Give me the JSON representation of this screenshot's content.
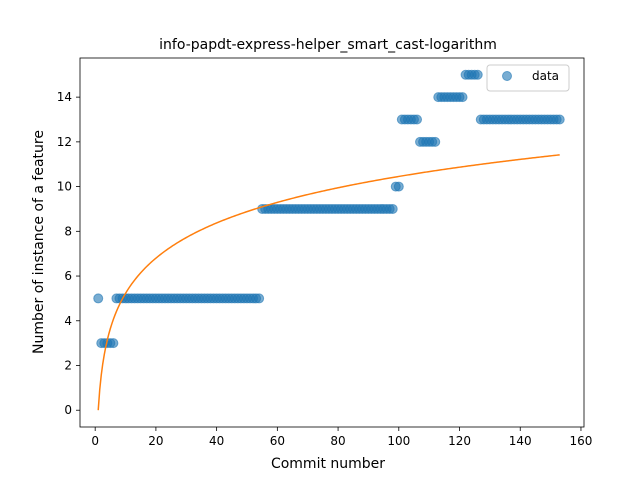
{
  "chart_data": {
    "type": "scatter",
    "title": "info-papdt-express-helper_smart_cast-logarithm",
    "xlabel": "Commit number",
    "ylabel": "Number of instance of a feature",
    "xlim": [
      -5,
      161
    ],
    "ylim": [
      -0.75,
      15.75
    ],
    "xticks": [
      0,
      20,
      40,
      60,
      80,
      100,
      120,
      140,
      160
    ],
    "yticks": [
      0,
      2,
      4,
      6,
      8,
      10,
      12,
      14
    ],
    "grid": false,
    "legend": {
      "position": "top-right",
      "entries": [
        "data"
      ]
    },
    "colors": {
      "data": "#1f77b4",
      "fit": "#ff7f0e"
    },
    "series": [
      {
        "name": "data",
        "kind": "scatter",
        "x": [
          1,
          2,
          3,
          4,
          5,
          6,
          7,
          8,
          9,
          10,
          11,
          12,
          13,
          14,
          15,
          16,
          17,
          18,
          19,
          20,
          21,
          22,
          23,
          24,
          25,
          26,
          27,
          28,
          29,
          30,
          31,
          32,
          33,
          34,
          35,
          36,
          37,
          38,
          39,
          40,
          41,
          42,
          43,
          44,
          45,
          46,
          47,
          48,
          49,
          50,
          51,
          52,
          53,
          54,
          55,
          56,
          57,
          58,
          59,
          60,
          61,
          62,
          63,
          64,
          65,
          66,
          67,
          68,
          69,
          70,
          71,
          72,
          73,
          74,
          75,
          76,
          77,
          78,
          79,
          80,
          81,
          82,
          83,
          84,
          85,
          86,
          87,
          88,
          89,
          90,
          91,
          92,
          93,
          94,
          95,
          96,
          97,
          98,
          99,
          100,
          101,
          102,
          103,
          104,
          105,
          106,
          107,
          108,
          109,
          110,
          111,
          112,
          113,
          114,
          115,
          116,
          117,
          118,
          119,
          120,
          121,
          122,
          123,
          124,
          125,
          126,
          127,
          128,
          129,
          130,
          131,
          132,
          133,
          134,
          135,
          136,
          137,
          138,
          139,
          140,
          141,
          142,
          143,
          144,
          145,
          146,
          147,
          148,
          149,
          150,
          151,
          152,
          153
        ],
        "y": [
          5,
          3,
          3,
          3,
          3,
          3,
          5,
          5,
          5,
          5,
          5,
          5,
          5,
          5,
          5,
          5,
          5,
          5,
          5,
          5,
          5,
          5,
          5,
          5,
          5,
          5,
          5,
          5,
          5,
          5,
          5,
          5,
          5,
          5,
          5,
          5,
          5,
          5,
          5,
          5,
          5,
          5,
          5,
          5,
          5,
          5,
          5,
          5,
          5,
          5,
          5,
          5,
          5,
          5,
          9,
          9,
          9,
          9,
          9,
          9,
          9,
          9,
          9,
          9,
          9,
          9,
          9,
          9,
          9,
          9,
          9,
          9,
          9,
          9,
          9,
          9,
          9,
          9,
          9,
          9,
          9,
          9,
          9,
          9,
          9,
          9,
          9,
          9,
          9,
          9,
          9,
          9,
          9,
          9,
          9,
          9,
          9,
          9,
          10,
          10,
          13,
          13,
          13,
          13,
          13,
          13,
          12,
          12,
          12,
          12,
          12,
          12,
          14,
          14,
          14,
          14,
          14,
          14,
          14,
          14,
          14,
          15,
          15,
          15,
          15,
          15,
          13,
          13,
          13,
          13,
          13,
          13,
          13,
          13,
          13,
          13,
          13,
          13,
          13,
          13,
          13,
          13,
          13,
          13,
          13,
          13,
          13,
          13,
          13,
          13,
          13,
          13,
          13
        ]
      },
      {
        "name": "",
        "kind": "line",
        "function": "a + b*ln(x)",
        "coefficients": {
          "a": 0.0,
          "b": 2.27
        },
        "x_range": [
          1,
          153
        ]
      }
    ]
  }
}
